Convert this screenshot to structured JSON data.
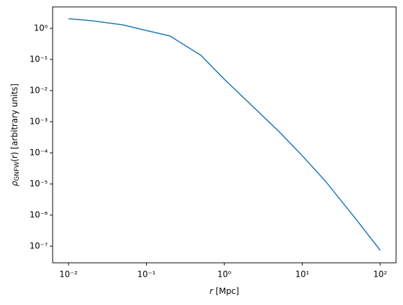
{
  "chart_data": {
    "type": "line",
    "xlabel": {
      "symbol": "r",
      "rest": " [Mpc]"
    },
    "ylabel": {
      "symbol": "ρ",
      "subscript": "GNFW",
      "rest": "(r) [arbitrary units]"
    },
    "x": [
      0.01,
      0.02,
      0.05,
      0.1,
      0.2,
      0.5,
      1,
      2,
      5,
      10,
      20,
      50,
      100
    ],
    "series": [
      {
        "color": "#1f77b4",
        "values": [
          2.05,
          1.75,
          1.29,
          0.85,
          0.57,
          0.136,
          0.023,
          0.0044,
          0.00049,
          8.1e-05,
          1.2e-05,
          6.9e-07,
          7.4e-08
        ]
      }
    ],
    "xscale": "log",
    "yscale": "log",
    "xlim": [
      0.00625,
      160
    ],
    "ylim": [
      2.93e-08,
      4.88
    ],
    "xticks": [
      {
        "value": 0.01,
        "label": "10⁻²"
      },
      {
        "value": 0.1,
        "label": "10⁻¹"
      },
      {
        "value": 1,
        "label": "10⁰"
      },
      {
        "value": 10,
        "label": "10¹"
      },
      {
        "value": 100,
        "label": "10²"
      }
    ],
    "yticks": [
      {
        "value": 1,
        "label": "10⁰"
      },
      {
        "value": 0.1,
        "label": "10⁻¹"
      },
      {
        "value": 0.01,
        "label": "10⁻²"
      },
      {
        "value": 0.001,
        "label": "10⁻³"
      },
      {
        "value": 0.0001,
        "label": "10⁻⁴"
      },
      {
        "value": 1e-05,
        "label": "10⁻⁵"
      },
      {
        "value": 1e-06,
        "label": "10⁻⁶"
      },
      {
        "value": 1e-07,
        "label": "10⁻⁷"
      }
    ],
    "grid": false
  }
}
